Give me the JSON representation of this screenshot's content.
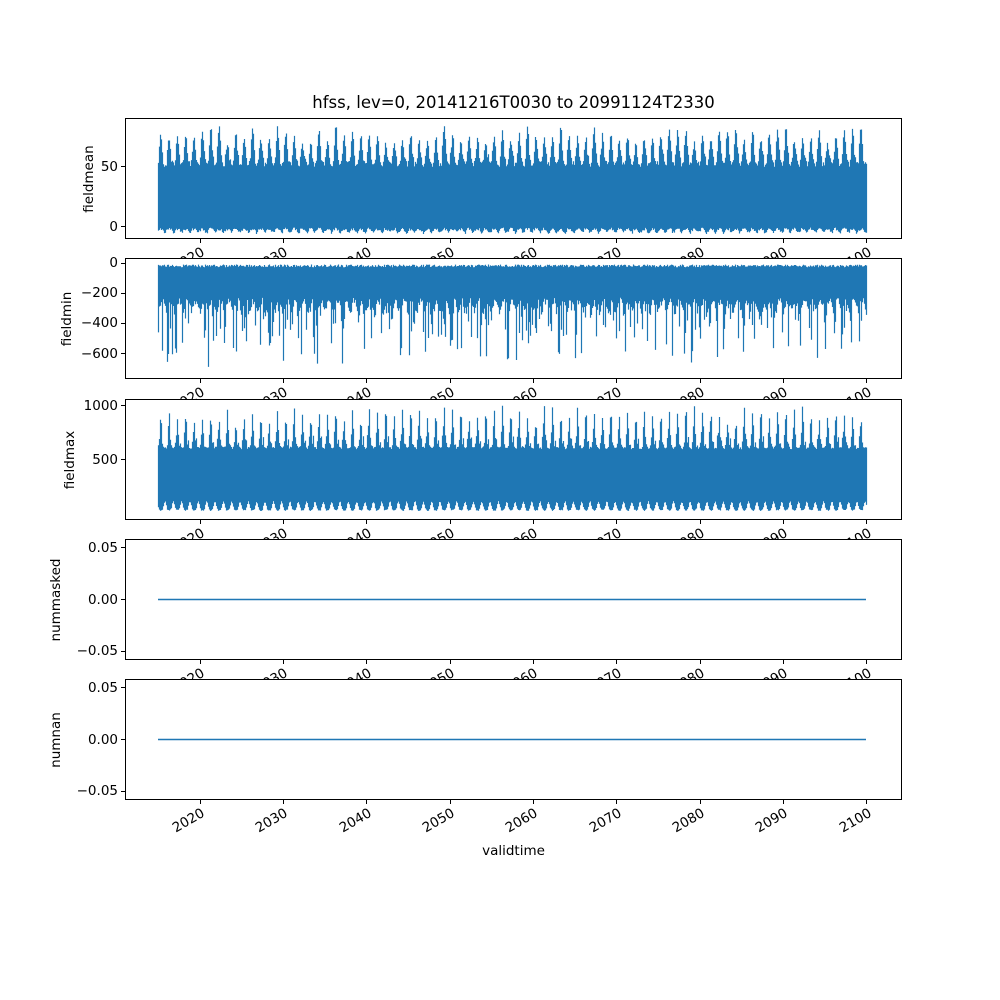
{
  "title": "hfss, lev=0, 20141216T0030 to 20991124T2330",
  "xlabel": "validtime",
  "colors": {
    "series": "#1f77b4",
    "axes": "#000000",
    "background": "#ffffff"
  },
  "x_axis": {
    "tick_values": [
      2020,
      2030,
      2040,
      2050,
      2060,
      2070,
      2080,
      2090,
      2100
    ],
    "tick_labels": [
      "2020",
      "2030",
      "2040",
      "2050",
      "2060",
      "2070",
      "2080",
      "2090",
      "2100"
    ],
    "tick_label_rotation_deg": 30,
    "xlim": [
      2010.71,
      2104.15
    ],
    "data_start_year": 2014.96,
    "data_end_year": 2099.9
  },
  "chart_data": [
    {
      "type": "line",
      "name": "fieldmean",
      "ylabel": "fieldmean",
      "ylim": [
        -9.2,
        90
      ],
      "yticks": [
        {
          "value": 50,
          "label": "50"
        },
        {
          "value": 0,
          "label": "0"
        }
      ],
      "series": {
        "kind": "dense_peaks_up",
        "description": "High-frequency signal oscillating between ~0 and a seasonally varying maximum; solid band 0-53 with annual peaks 70-84",
        "seed": 101,
        "top_base": 50,
        "top_noise": 5,
        "annual_amp": [
          16,
          32
        ],
        "sharp": 2.5,
        "secondary": 6,
        "clamp_top": 84,
        "bottom_base": -0.5,
        "bottom_teeth": -3,
        "bottom_noise": -2.5
      }
    },
    {
      "type": "line",
      "name": "fieldmin",
      "ylabel": "fieldmin",
      "ylim": [
        -761,
        26.5
      ],
      "yticks": [
        {
          "value": 0,
          "label": "0"
        },
        {
          "value": -200,
          "label": "−200"
        },
        {
          "value": -400,
          "label": "−400"
        },
        {
          "value": -600,
          "label": "−600"
        }
      ],
      "series": {
        "kind": "dense_spikes_down",
        "description": "High-frequency signal between ~-10 and ~-300 with frequent downward spikes to -400..-710",
        "seed": 202,
        "top_base": -10,
        "top_noise": 18,
        "bottom_base": -230,
        "bottom_annual": 70,
        "bottom_noise": 45,
        "spike_prob": 0.42,
        "spike_scale": 360,
        "clamp": -710
      }
    },
    {
      "type": "line",
      "name": "fieldmax",
      "ylabel": "fieldmax",
      "ylim": [
        -46,
        1055
      ],
      "yticks": [
        {
          "value": 1000,
          "label": "1000"
        },
        {
          "value": 500,
          "label": "500"
        }
      ],
      "series": {
        "kind": "dense_peaks_up",
        "description": "High-frequency signal between ~30-110 and a solid band to ~620 with sharp annual peaks 830-1010",
        "seed": 303,
        "top_base": 600,
        "top_noise": 22,
        "annual_amp": [
          230,
          400
        ],
        "sharp": 6,
        "secondary": 120,
        "clamp_top": 1012,
        "bottom_base": 28,
        "bottom_teeth": 80,
        "bottom_noise": 12
      }
    },
    {
      "type": "line",
      "name": "nummasked",
      "ylabel": "nummasked",
      "ylim": [
        -0.0575,
        0.0575
      ],
      "yticks": [
        {
          "value": 0.05,
          "label": "0.05"
        },
        {
          "value": 0,
          "label": "0.00"
        },
        {
          "value": -0.05,
          "label": "−0.05"
        }
      ],
      "series": {
        "kind": "flat",
        "value": 0.0,
        "description": "Constant 0 over full time range"
      }
    },
    {
      "type": "line",
      "name": "numnan",
      "ylabel": "numnan",
      "ylim": [
        -0.0575,
        0.0575
      ],
      "yticks": [
        {
          "value": 0.05,
          "label": "0.05"
        },
        {
          "value": 0,
          "label": "0.00"
        },
        {
          "value": -0.05,
          "label": "−0.05"
        }
      ],
      "series": {
        "kind": "flat",
        "value": 0.0,
        "description": "Constant 0 over full time range"
      }
    }
  ]
}
